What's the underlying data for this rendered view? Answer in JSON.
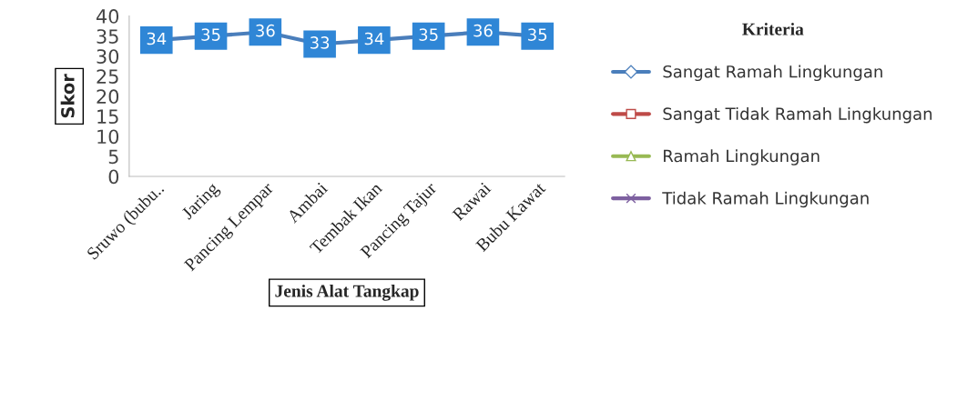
{
  "chart_data": {
    "type": "line",
    "xlabel": "Jenis Alat Tangkap",
    "ylabel": "Skor",
    "legend_title": "Kriteria",
    "categories": [
      "Sruwo (bubu..",
      "Jaring",
      "Pancing Lempar",
      "Ambai",
      "Tembak Ikan",
      "Pancing Tajur",
      "Rawai",
      "Bubu Kawat"
    ],
    "series": [
      {
        "name": "Sangat Ramah Lingkungan",
        "color": "#4a7ebb",
        "marker": "diamond",
        "values": [
          34,
          35,
          36,
          33,
          34,
          35,
          36,
          35
        ]
      },
      {
        "name": "Sangat Tidak Ramah Lingkungan",
        "color": "#be4b48",
        "marker": "square",
        "values": [
          null,
          null,
          null,
          null,
          null,
          null,
          null,
          null
        ]
      },
      {
        "name": "Ramah Lingkungan",
        "color": "#98b954",
        "marker": "triangle",
        "values": [
          null,
          null,
          null,
          null,
          null,
          null,
          null,
          null
        ]
      },
      {
        "name": "Tidak Ramah Lingkungan",
        "color": "#7d60a0",
        "marker": "cross",
        "values": [
          null,
          null,
          null,
          null,
          null,
          null,
          null,
          null
        ]
      }
    ],
    "ylim": [
      0,
      40
    ],
    "yticks": [
      0,
      5,
      10,
      15,
      20,
      25,
      30,
      35,
      40
    ],
    "grid": false,
    "legend": "right",
    "data_labels": true
  }
}
